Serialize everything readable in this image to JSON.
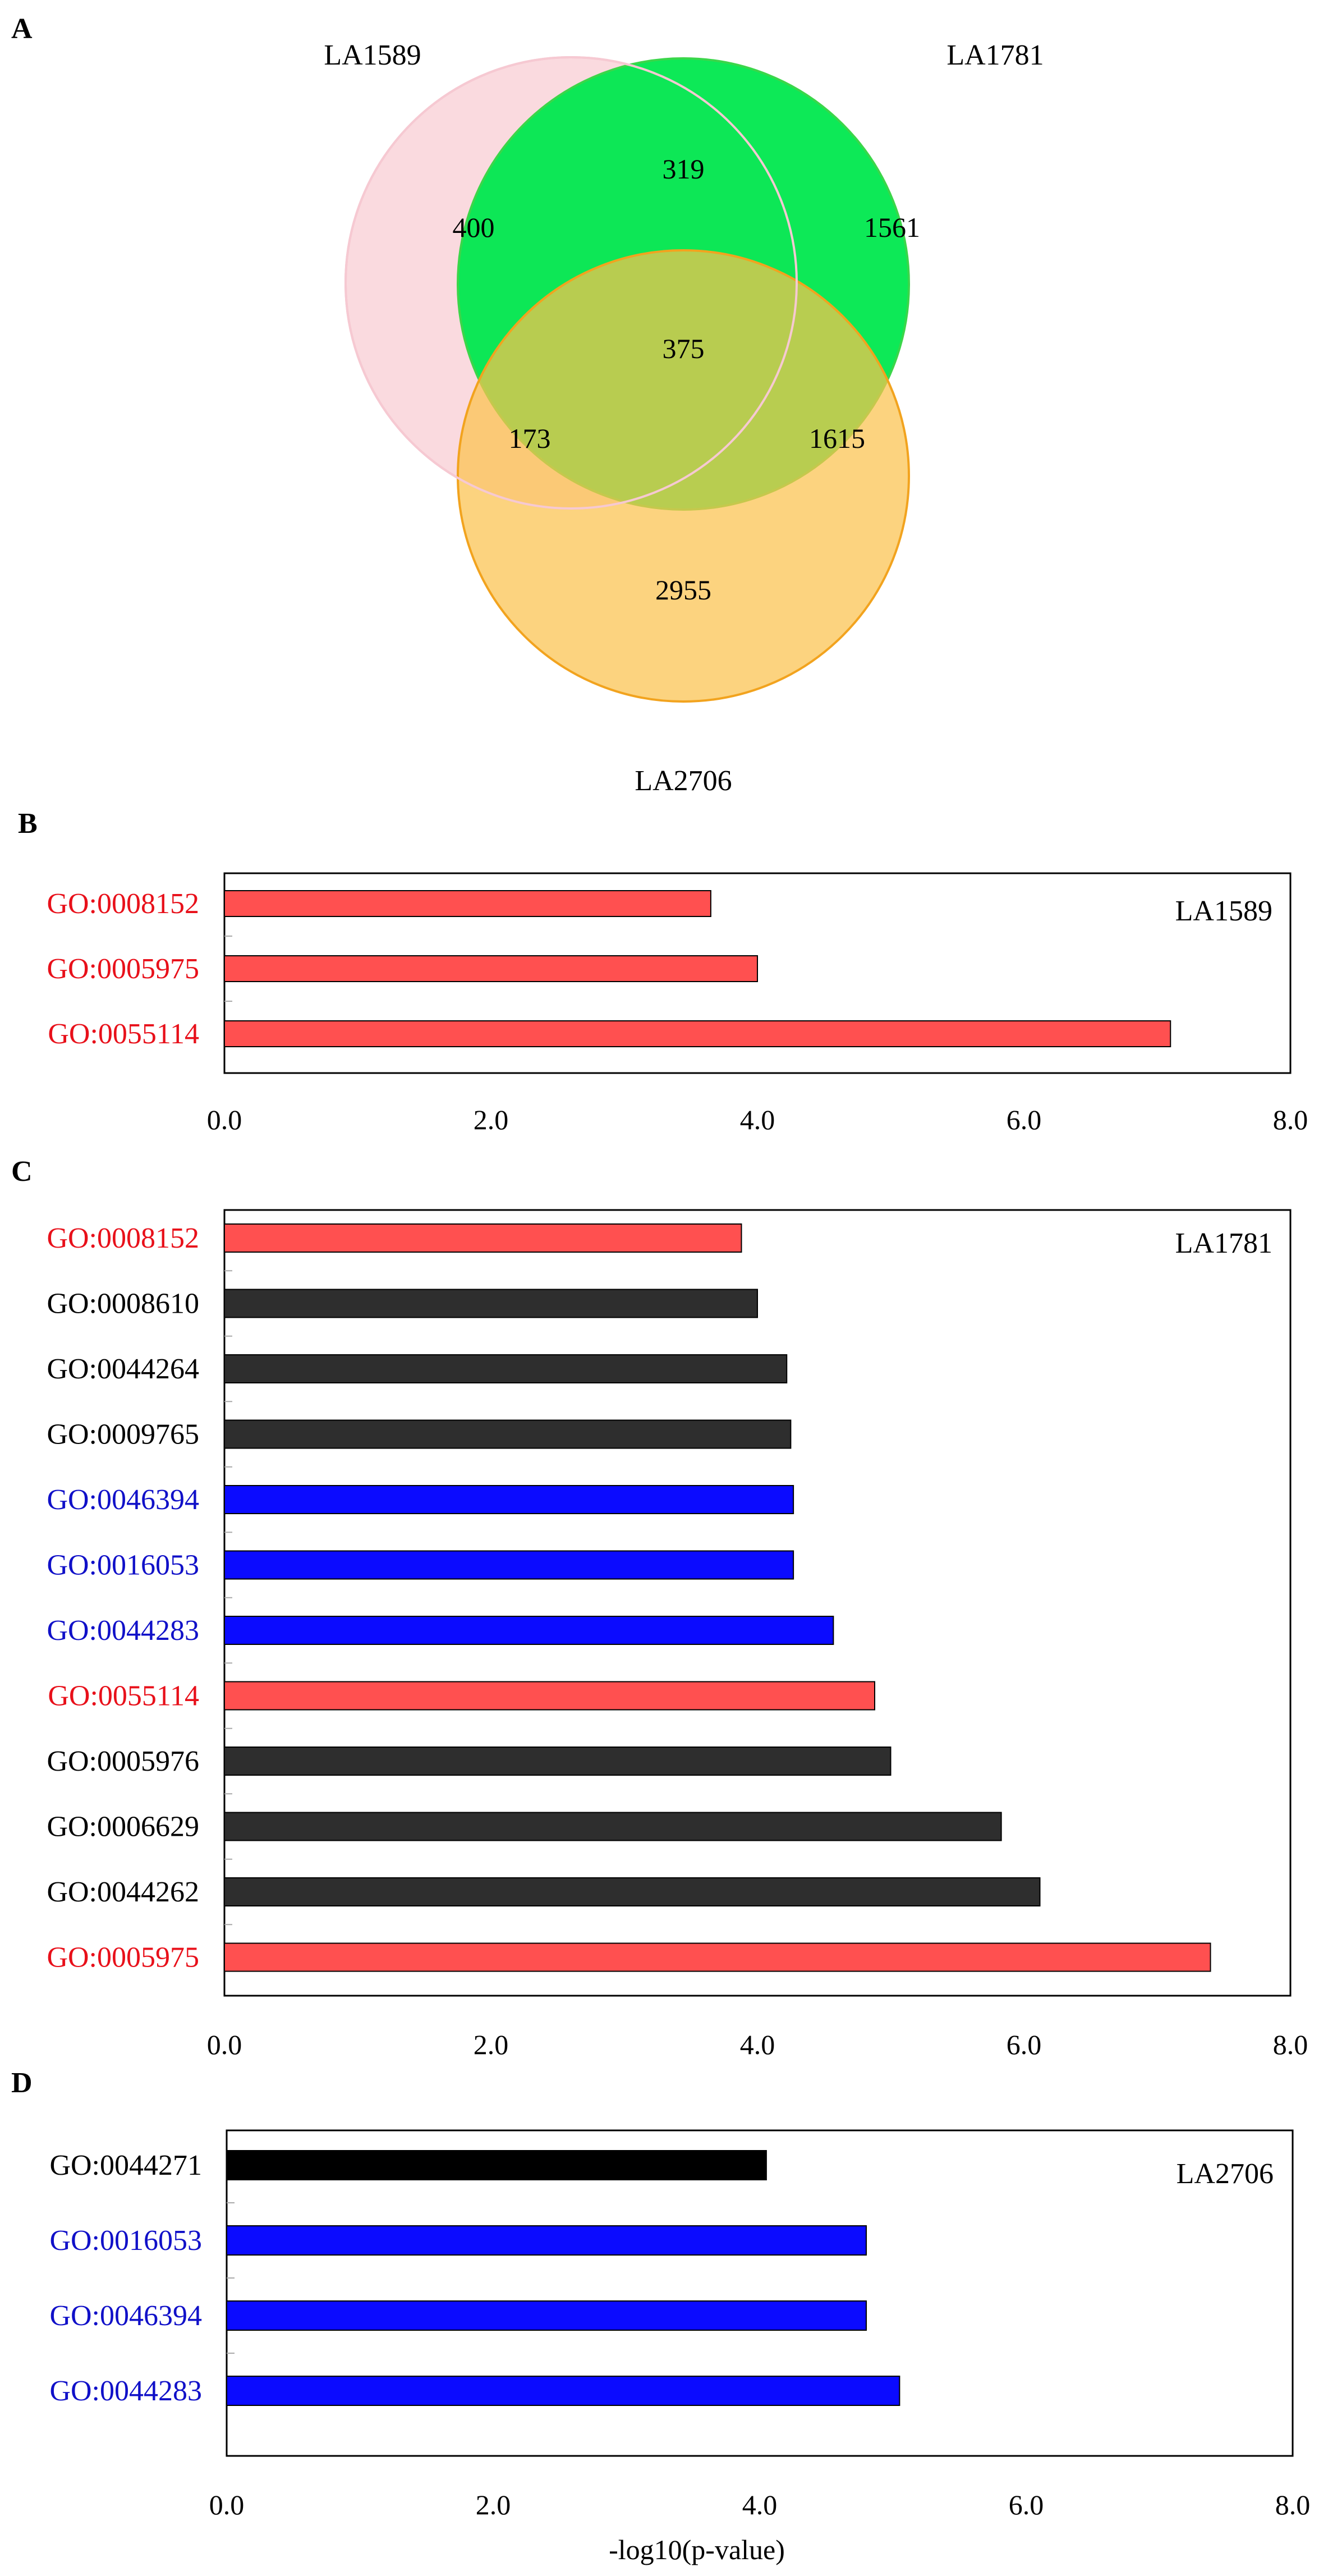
{
  "panel_letters": {
    "a": "A",
    "b": "B",
    "c": "C",
    "d": "D"
  },
  "venn": {
    "sets": [
      {
        "name": "LA1589",
        "color": "#fadadf",
        "stroke": "#f4bcc8"
      },
      {
        "name": "LA1781",
        "color": "#00e84e",
        "stroke": "#3bd64a"
      },
      {
        "name": "LA2706",
        "color": "#fbc24e",
        "stroke": "#f2a31e"
      }
    ],
    "counts": {
      "only_a": "400",
      "a_b": "319",
      "only_b": "1561",
      "all": "375",
      "a_c": "173",
      "b_c": "1615",
      "only_c": "2955"
    }
  },
  "colors": {
    "red": "#ff5050",
    "red_text": "#e8101a",
    "blue": "#0b0bff",
    "blue_text": "#1010c8",
    "dark": "#2e2e2e",
    "black": "#000000"
  },
  "chart_data": [
    {
      "type": "bar",
      "orientation": "horizontal",
      "panel": "B",
      "name_label": "LA1589",
      "xlim": [
        0,
        8
      ],
      "xticks": [
        "0.0",
        "2.0",
        "4.0",
        "6.0",
        "8.0"
      ],
      "categories": [
        "GO:0008152",
        "GO:0005975",
        "GO:0055114"
      ],
      "values": [
        3.65,
        4.0,
        7.1
      ],
      "bar_colors": [
        "red",
        "red",
        "red"
      ],
      "label_colors": [
        "red_text",
        "red_text",
        "red_text"
      ]
    },
    {
      "type": "bar",
      "orientation": "horizontal",
      "panel": "C",
      "name_label": "LA1781",
      "xlim": [
        0,
        8
      ],
      "xticks": [
        "0.0",
        "2.0",
        "4.0",
        "6.0",
        "8.0"
      ],
      "categories": [
        "GO:0008152",
        "GO:0008610",
        "GO:0044264",
        "GO:0009765",
        "GO:0046394",
        "GO:0016053",
        "GO:0044283",
        "GO:0055114",
        "GO:0005976",
        "GO:0006629",
        "GO:0044262",
        "GO:0005975"
      ],
      "values": [
        3.88,
        4.0,
        4.22,
        4.25,
        4.27,
        4.27,
        4.57,
        4.88,
        5.0,
        5.83,
        6.12,
        7.4
      ],
      "bar_colors": [
        "red",
        "dark",
        "dark",
        "dark",
        "blue",
        "blue",
        "blue",
        "red",
        "dark",
        "dark",
        "dark",
        "red"
      ],
      "label_colors": [
        "red_text",
        "black",
        "black",
        "black",
        "blue_text",
        "blue_text",
        "blue_text",
        "red_text",
        "black",
        "black",
        "black",
        "red_text"
      ]
    },
    {
      "type": "bar",
      "orientation": "horizontal",
      "panel": "D",
      "name_label": "LA2706",
      "xlim": [
        0,
        8
      ],
      "xticks": [
        "0.0",
        "2.0",
        "4.0",
        "6.0",
        "8.0"
      ],
      "xlabel": "-log10(p-value)",
      "categories": [
        "GO:0044271",
        "GO:0016053",
        "GO:0046394",
        "GO:0044283"
      ],
      "values": [
        4.05,
        4.8,
        4.8,
        5.05
      ],
      "bar_colors": [
        "black",
        "blue",
        "blue",
        "blue"
      ],
      "label_colors": [
        "black",
        "blue_text",
        "blue_text",
        "blue_text"
      ]
    }
  ]
}
